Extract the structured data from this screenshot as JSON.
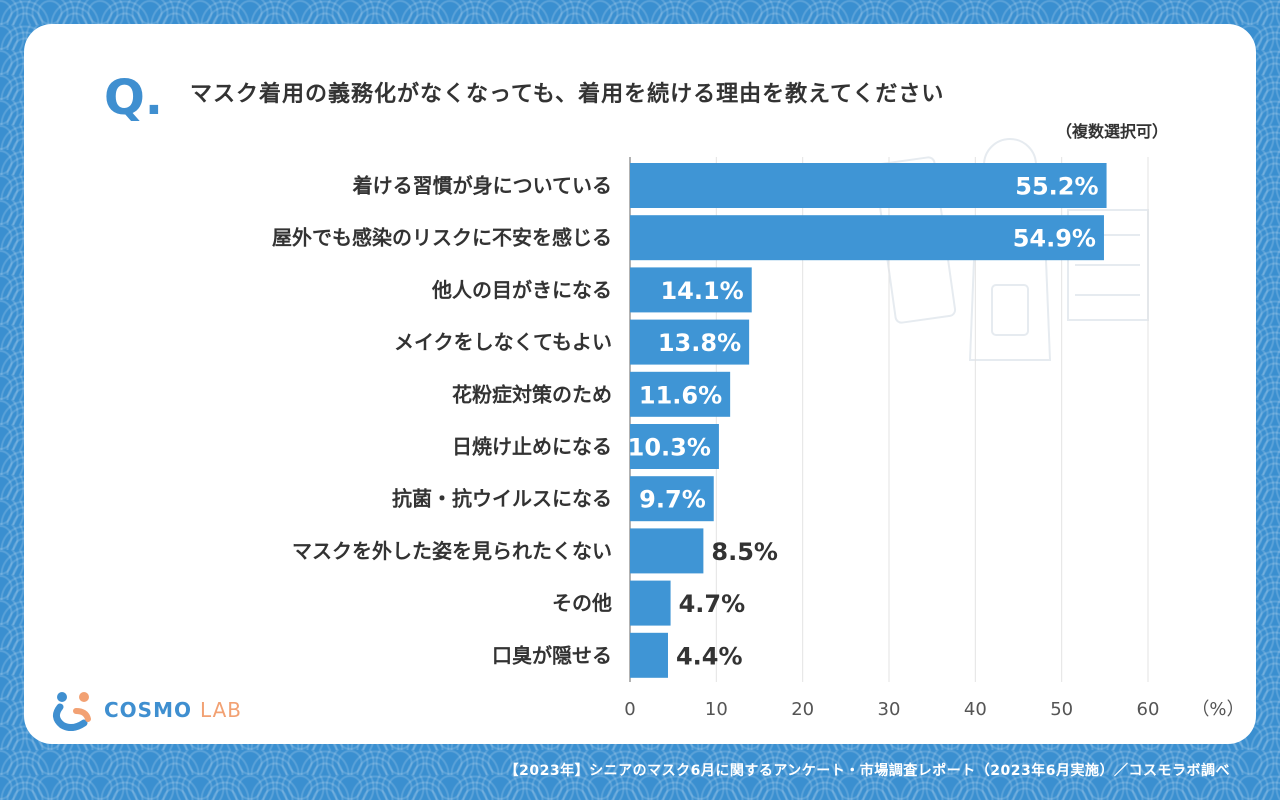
{
  "question": {
    "mark": "Q.",
    "text": "マスク着用の義務化がなくなっても、着用を続ける理由を教えてください",
    "note": "（複数選択可）"
  },
  "chart_data": {
    "type": "bar",
    "orientation": "horizontal",
    "categories": [
      "着ける習慣が身についている",
      "屋外でも感染のリスクに不安を感じる",
      "他人の目がきになる",
      "メイクをしなくてもよい",
      "花粉症対策のため",
      "日焼け止めになる",
      "抗菌・抗ウイルスになる",
      "マスクを外した姿を見られたくない",
      "その他",
      "口臭が隠せる"
    ],
    "values": [
      55.2,
      54.9,
      14.1,
      13.8,
      11.6,
      10.3,
      9.7,
      8.5,
      4.7,
      4.4
    ],
    "value_labels": [
      "55.2%",
      "54.9%",
      "14.1%",
      "13.8%",
      "11.6%",
      "10.3%",
      "9.7%",
      "8.5%",
      "4.7%",
      "4.4%"
    ],
    "xlim": [
      0,
      60
    ],
    "xticks": [
      0,
      10,
      20,
      30,
      40,
      50,
      60
    ],
    "xtick_labels": [
      "0",
      "10",
      "20",
      "30",
      "40",
      "50",
      "60"
    ],
    "unit_label": "（%）",
    "grid": true,
    "bar_color": "#3f95d5"
  },
  "logo": {
    "cosmo": "COSMO",
    "lab": "LAB"
  },
  "footer": "【2023年】シニアのマスク6月に関するアンケート・市場調査レポート（2023年6月実施）／コスモラボ調べ"
}
